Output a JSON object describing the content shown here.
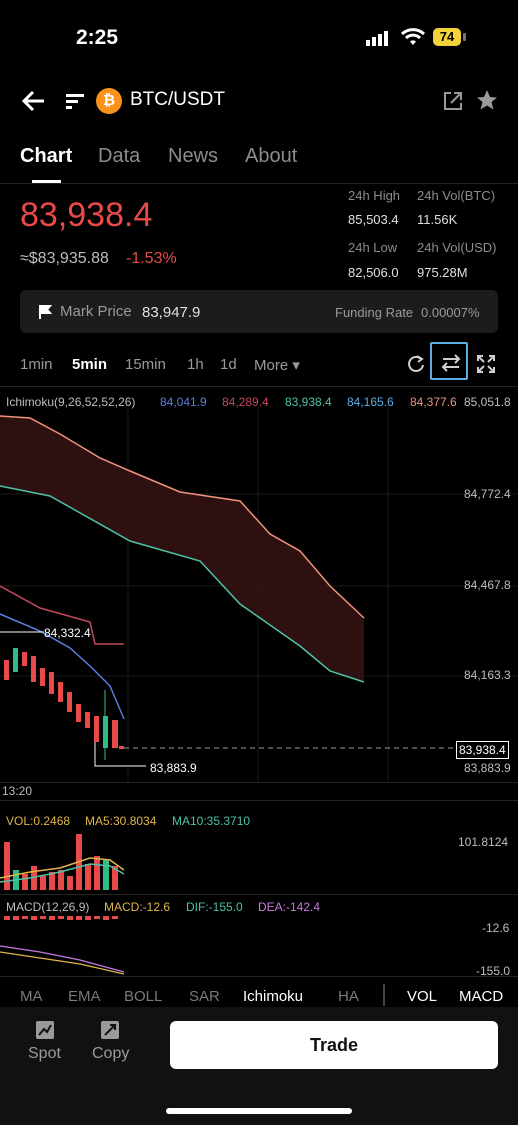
{
  "status": {
    "time": "2:25",
    "battery": "74"
  },
  "header": {
    "pair": "BTC/USDT",
    "coin_glyph": "₿",
    "icons": [
      "back-arrow-icon",
      "list-toggle-icon",
      "share-icon",
      "star-icon"
    ]
  },
  "tabs": [
    {
      "label": "Chart",
      "active": true
    },
    {
      "label": "Data"
    },
    {
      "label": "News"
    },
    {
      "label": "About"
    }
  ],
  "price": {
    "last": "83,938.4",
    "usd": "≈$83,935.88",
    "change": "-1.53%",
    "high_label": "24h High",
    "high": "85,503.4",
    "vol_btc_label": "24h Vol(BTC)",
    "vol_btc": "11.56K",
    "low_label": "24h Low",
    "low": "82,506.0",
    "vol_usd_label": "24h Vol(USD)",
    "vol_usd": "975.28M"
  },
  "mark": {
    "label": "Mark Price",
    "value": "83,947.9",
    "funding_label": "Funding Rate",
    "funding_value": "0.00007%"
  },
  "intervals": [
    {
      "label": "1min"
    },
    {
      "label": "5min",
      "active": true
    },
    {
      "label": "15min"
    },
    {
      "label": "1h"
    },
    {
      "label": "1d"
    },
    {
      "label": "More ▾"
    }
  ],
  "chart": {
    "ichimoku_label": "Ichimoku(9,26,52,52,26)",
    "ichimoku_values": [
      {
        "v": "84,041.9",
        "c": "#5a7ee0"
      },
      {
        "v": "84,289.4",
        "c": "#c04a5a"
      },
      {
        "v": "83,938.4",
        "c": "#4fc1a6"
      },
      {
        "v": "84,165.6",
        "c": "#5ab0e5"
      },
      {
        "v": "84,377.6",
        "c": "#f0937a"
      }
    ],
    "y_ticks": [
      "85,051.8",
      "84,772.4",
      "84,467.8",
      "84,163.3",
      "83,883.9"
    ],
    "last_price_tag": "83,938.4",
    "high_marker": "84,332.4",
    "low_marker": "83,883.9",
    "time_label": "13:20",
    "vol_label": "VOL:0.2468",
    "ma5": "MA5:30.8034",
    "ma10": "MA10:35.3710",
    "vol_axis": "101.8124",
    "macd_label": "MACD(12,26,9)",
    "macd": "MACD:-12.6",
    "dif": "DIF:-155.0",
    "dea": "DEA:-142.4",
    "macd_axis_1": "-12.6",
    "macd_axis_2": "-155.0"
  },
  "indicators": [
    {
      "label": "MA"
    },
    {
      "label": "EMA"
    },
    {
      "label": "BOLL"
    },
    {
      "label": "SAR"
    },
    {
      "label": "Ichimoku",
      "on": true
    },
    {
      "label": "HA"
    },
    {
      "label": "VOL",
      "on": true
    },
    {
      "label": "MACD",
      "on": true
    }
  ],
  "bottom": {
    "spot": "Spot",
    "copy": "Copy",
    "trade": "Trade"
  },
  "colors": {
    "up": "#2ebd85",
    "down": "#e84a4a",
    "accent_box": "#5ab0e5"
  }
}
